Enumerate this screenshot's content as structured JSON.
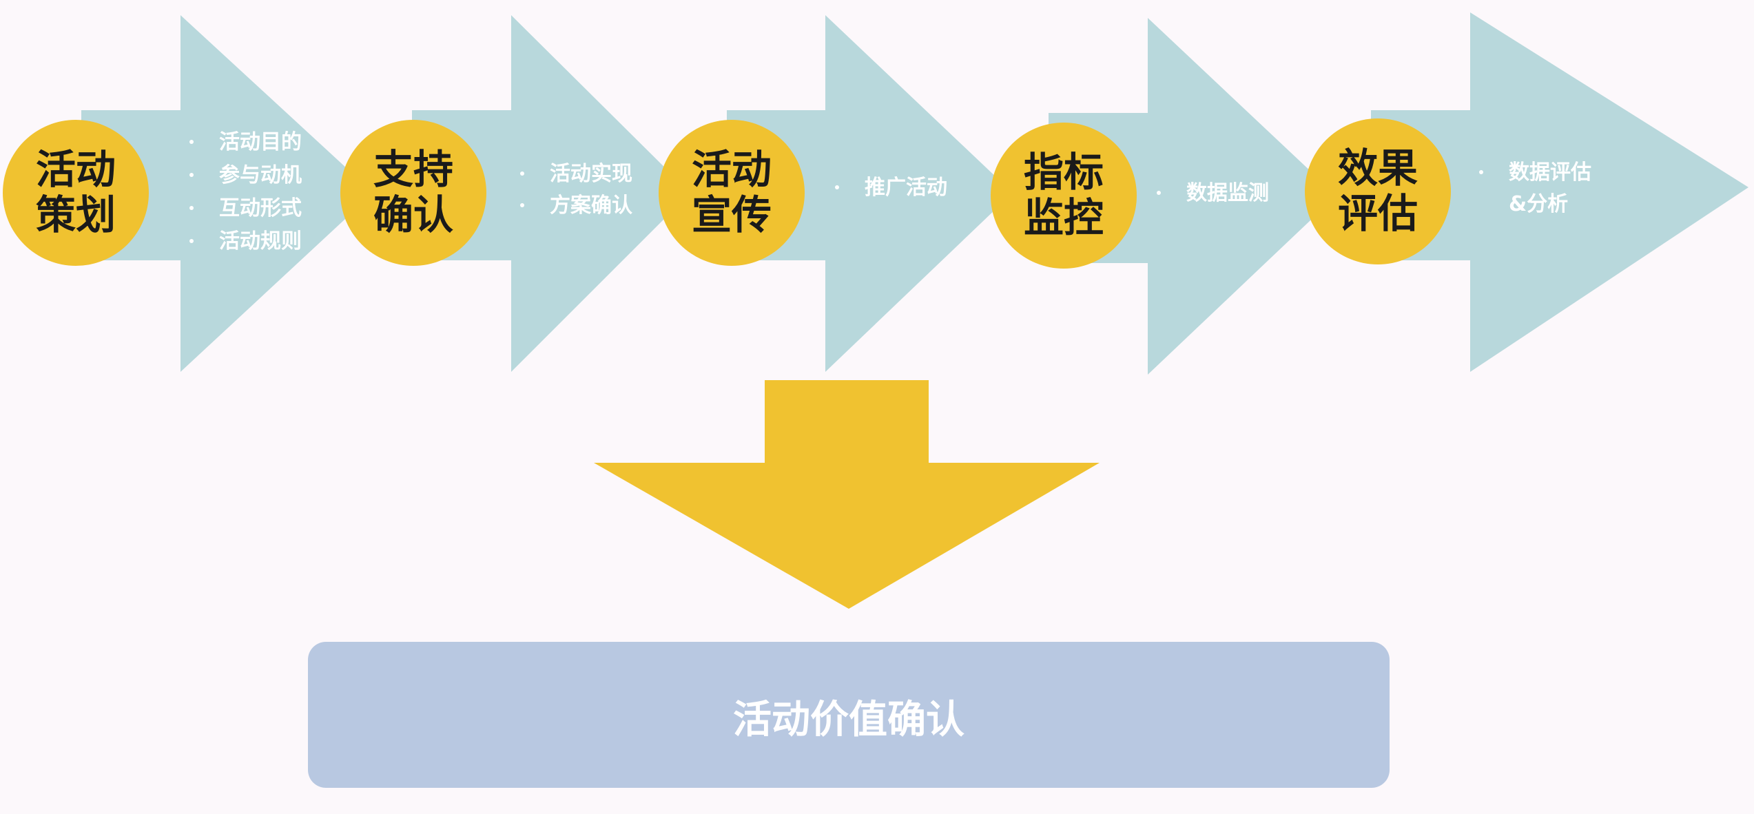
{
  "colors": {
    "background": "#fcf8fb",
    "arrow": "#b8d8dc",
    "circle": "#f0c230",
    "circle_text": "#1a1a1a",
    "bullet_text": "#ffffff",
    "down_arrow": "#f0c230",
    "result_box": "#b8c8e1",
    "result_text": "#ffffff"
  },
  "stages": [
    {
      "title_lines": [
        "活动",
        "策划"
      ],
      "bullets": [
        "活动目的",
        "参与动机",
        "互动形式",
        "活动规则"
      ]
    },
    {
      "title_lines": [
        "支持",
        "确认"
      ],
      "bullets": [
        "活动实现",
        "方案确认"
      ]
    },
    {
      "title_lines": [
        "活动",
        "宣传"
      ],
      "bullets": [
        "推广活动"
      ]
    },
    {
      "title_lines": [
        "指标",
        "监控"
      ],
      "bullets": [
        "数据监测"
      ]
    },
    {
      "title_lines": [
        "效果",
        "评估"
      ],
      "bullets": [
        "数据评估",
        "&分析"
      ]
    }
  ],
  "result": {
    "label": "活动价值确认"
  }
}
